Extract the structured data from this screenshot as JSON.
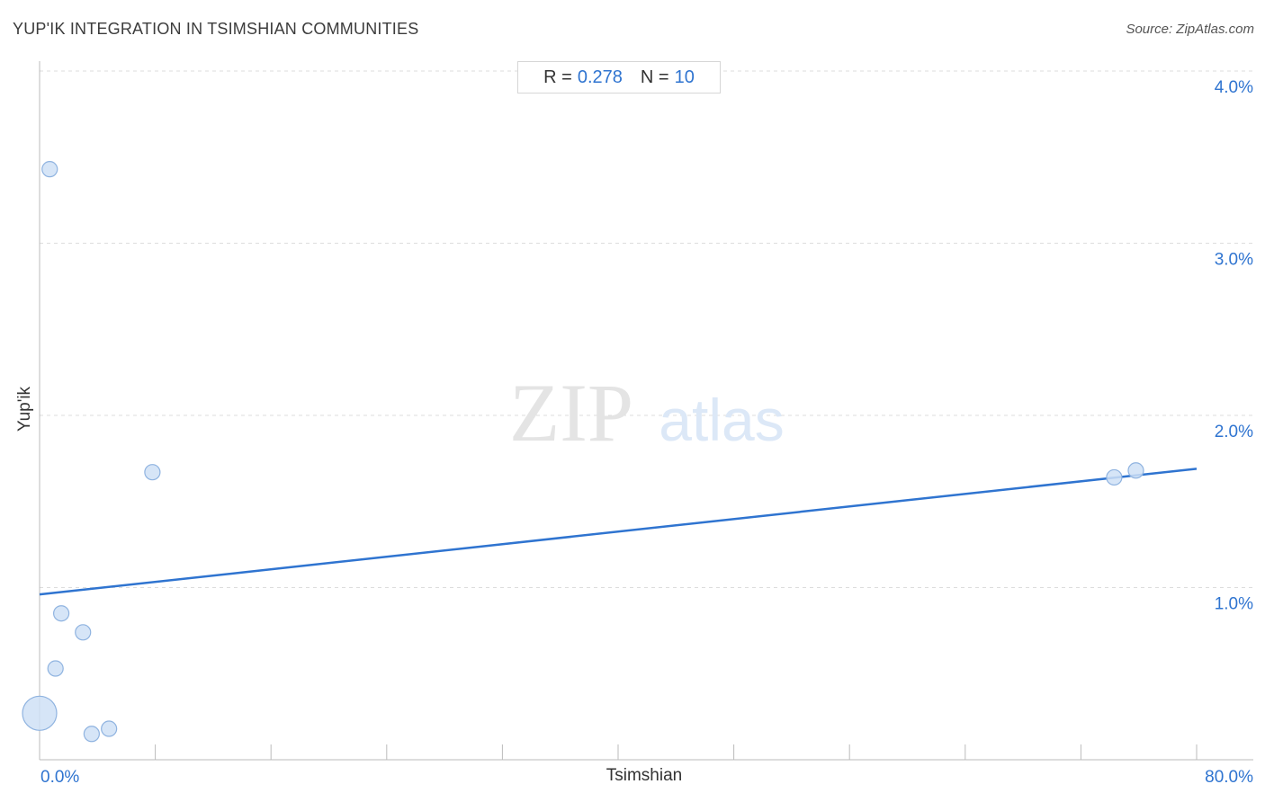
{
  "header": {
    "title": "YUP'IK INTEGRATION IN TSIMSHIAN COMMUNITIES",
    "source": "Source: ZipAtlas.com"
  },
  "stats": {
    "r_label": "R =",
    "r_value": "0.278",
    "n_label": "N =",
    "n_value": "10"
  },
  "watermark": {
    "zip": "ZIP",
    "atlas": "atlas"
  },
  "colors": {
    "accent": "#2f74d0",
    "point_fill": "#cfe0f6",
    "point_stroke": "#8fb3e0",
    "grid": "#dddddd",
    "axis": "#bbbbbb"
  },
  "chart_data": {
    "type": "scatter",
    "title": "YUP'IK INTEGRATION IN TSIMSHIAN COMMUNITIES",
    "xlabel": "Tsimshian",
    "ylabel": "Yup'ik",
    "xlim": [
      0,
      80
    ],
    "ylim": [
      0,
      4
    ],
    "x_tick_labels": [
      {
        "value": 0,
        "label": "0.0%"
      },
      {
        "value": 80,
        "label": "80.0%"
      }
    ],
    "y_tick_labels": [
      {
        "value": 1,
        "label": "1.0%"
      },
      {
        "value": 2,
        "label": "2.0%"
      },
      {
        "value": 3,
        "label": "3.0%"
      },
      {
        "value": 4,
        "label": "4.0%"
      }
    ],
    "grid": true,
    "points": [
      {
        "x": 0.7,
        "y": 3.43,
        "size": "small"
      },
      {
        "x": 7.8,
        "y": 1.67,
        "size": "small"
      },
      {
        "x": 1.5,
        "y": 0.85,
        "size": "small"
      },
      {
        "x": 3.0,
        "y": 0.74,
        "size": "small"
      },
      {
        "x": 1.1,
        "y": 0.53,
        "size": "small"
      },
      {
        "x": 0.0,
        "y": 0.27,
        "size": "large"
      },
      {
        "x": 3.6,
        "y": 0.15,
        "size": "small"
      },
      {
        "x": 4.8,
        "y": 0.18,
        "size": "small"
      },
      {
        "x": 74.3,
        "y": 1.64,
        "size": "small"
      },
      {
        "x": 75.8,
        "y": 1.68,
        "size": "small"
      }
    ],
    "trendline": {
      "x": [
        0,
        80
      ],
      "y": [
        0.96,
        1.69
      ]
    }
  }
}
